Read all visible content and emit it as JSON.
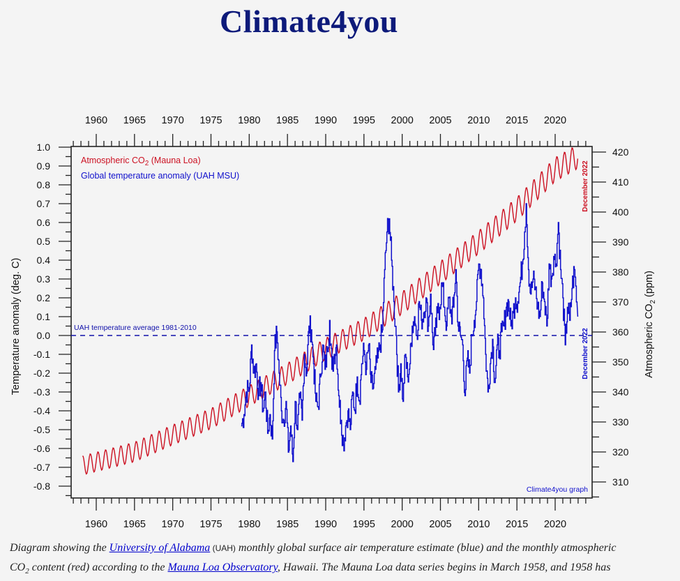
{
  "page": {
    "site_title": "Climate4you"
  },
  "caption": {
    "line1_part1": "Diagram showing the ",
    "link1": "University of Alabama",
    "line1_part2": " (UAH)",
    "line1_part3": " monthly global surface air temperature estimate (blue) and the monthly atmospheric",
    "line2_co2": "CO",
    "line2_sub": "2",
    "line2_part1": " content (red) according to the ",
    "link2": "Mauna Loa Observatory",
    "line2_part2": ", Hawaii. The Mauna Loa data series begins in March 1958, and 1958 has"
  },
  "chart_data": {
    "type": "line",
    "title": "",
    "xlabel": "",
    "xlim": [
      1956.8,
      2024.8
    ],
    "x_ticks": [
      1960,
      1965,
      1970,
      1975,
      1980,
      1985,
      1990,
      1995,
      2000,
      2005,
      2010,
      2015,
      2020
    ],
    "x_tick_labels": [
      "1960",
      "1965",
      "1970",
      "1975",
      "1980",
      "1985",
      "1990",
      "1995",
      "2000",
      "2005",
      "2010",
      "2015",
      "2020"
    ],
    "y_left": {
      "label": "Temperature anomaly (deg. C)",
      "ylim": [
        -0.9,
        1.0
      ],
      "ticks": [
        1.0,
        0.9,
        0.8,
        0.7,
        0.6,
        0.5,
        0.4,
        0.3,
        0.2,
        0.1,
        0.0,
        -0.1,
        -0.2,
        -0.3,
        -0.4,
        -0.5,
        -0.6,
        -0.7,
        -0.8
      ],
      "tick_labels": [
        "1.0",
        "0.9",
        "0.8",
        "0.7",
        "0.6",
        "0.5",
        "0.4",
        "0.3",
        "0.2",
        "0.1",
        "0.0",
        "-0.1",
        "-0.2",
        "-0.3",
        "-0.4",
        "-0.5",
        "-0.6",
        "-0.7",
        "-0.8"
      ]
    },
    "y_right": {
      "label_main": "Atmospheric CO",
      "label_sub": "2",
      "label_tail": " (ppm)",
      "ylim": [
        305,
        421.7
      ],
      "ticks": [
        420,
        410,
        400,
        390,
        380,
        370,
        360,
        350,
        340,
        330,
        320,
        310
      ],
      "tick_labels": [
        "420",
        "410",
        "400",
        "390",
        "380",
        "370",
        "360",
        "350",
        "340",
        "330",
        "320",
        "310"
      ]
    },
    "legend": {
      "placement": "top-left",
      "entries": [
        {
          "label_main": "Atmospheric CO",
          "label_sub": "2",
          "label_tail": " (Mauna Loa)",
          "color": "#cc1122"
        },
        {
          "label_main": "Global temperature anomaly (UAH MSU)",
          "label_sub": "",
          "label_tail": "",
          "color": "#1010cc"
        }
      ]
    },
    "annotations": {
      "baseline_label": "UAH temperature average 1981-2010",
      "baseline_value": 0.0,
      "co2_end_label": "December 2022",
      "temp_end_label": "December 2022",
      "credit": "Climate4you graph"
    },
    "series": [
      {
        "name": "Atmospheric CO2 (Mauna Loa)",
        "axis": "right",
        "color": "#cc1122",
        "start": 1958.2,
        "end": 2022.95,
        "seasonal_amplitude_ppm": 3.2,
        "trend_x": [
          1958.2,
          1965,
          1970,
          1975,
          1980,
          1985,
          1990,
          1995,
          2000,
          2005,
          2010,
          2015,
          2020,
          2022.95
        ],
        "trend_y": [
          315.5,
          320.0,
          325.7,
          331.1,
          338.7,
          346.1,
          354.4,
          360.9,
          369.7,
          379.8,
          389.9,
          401.0,
          414.2,
          418.5
        ]
      },
      {
        "name": "Global temperature anomaly (UAH MSU)",
        "axis": "left",
        "color": "#1010cc",
        "x": [
          1978.95,
          1979.3,
          1979.6,
          1980.0,
          1980.3,
          1980.6,
          1980.9,
          1981.2,
          1981.5,
          1981.8,
          1982.1,
          1982.4,
          1982.7,
          1983.0,
          1983.3,
          1983.6,
          1983.9,
          1984.2,
          1984.5,
          1984.8,
          1985.1,
          1985.4,
          1985.7,
          1986.0,
          1986.3,
          1986.6,
          1986.9,
          1987.2,
          1987.5,
          1987.8,
          1988.1,
          1988.4,
          1988.7,
          1989.0,
          1989.3,
          1989.6,
          1989.9,
          1990.2,
          1990.5,
          1990.8,
          1991.1,
          1991.4,
          1991.7,
          1992.0,
          1992.3,
          1992.6,
          1992.9,
          1993.2,
          1993.5,
          1993.8,
          1994.1,
          1994.4,
          1994.7,
          1995.0,
          1995.3,
          1995.6,
          1995.9,
          1996.2,
          1996.5,
          1996.8,
          1997.1,
          1997.4,
          1997.7,
          1998.0,
          1998.3,
          1998.6,
          1998.9,
          1999.2,
          1999.5,
          1999.8,
          2000.1,
          2000.4,
          2000.7,
          2001.0,
          2001.3,
          2001.6,
          2001.9,
          2002.2,
          2002.5,
          2002.8,
          2003.1,
          2003.4,
          2003.7,
          2004.0,
          2004.3,
          2004.6,
          2004.9,
          2005.2,
          2005.5,
          2005.8,
          2006.1,
          2006.4,
          2006.7,
          2007.0,
          2007.3,
          2007.6,
          2007.9,
          2008.2,
          2008.5,
          2008.8,
          2009.1,
          2009.4,
          2009.7,
          2010.0,
          2010.3,
          2010.6,
          2010.9,
          2011.2,
          2011.5,
          2011.8,
          2012.1,
          2012.4,
          2012.7,
          2013.0,
          2013.3,
          2013.6,
          2013.9,
          2014.2,
          2014.5,
          2014.8,
          2015.1,
          2015.4,
          2015.7,
          2016.0,
          2016.2,
          2016.5,
          2016.8,
          2017.1,
          2017.4,
          2017.7,
          2018.0,
          2018.3,
          2018.6,
          2018.9,
          2019.2,
          2019.5,
          2019.8,
          2020.1,
          2020.4,
          2020.7,
          2021.0,
          2021.3,
          2021.6,
          2021.9,
          2022.2,
          2022.5,
          2022.95
        ],
        "y": [
          -0.48,
          -0.42,
          -0.3,
          -0.28,
          -0.05,
          -0.2,
          -0.15,
          -0.32,
          -0.25,
          -0.4,
          -0.3,
          -0.52,
          -0.42,
          -0.55,
          -0.08,
          0.02,
          -0.2,
          -0.4,
          -0.45,
          -0.35,
          -0.62,
          -0.48,
          -0.67,
          -0.35,
          -0.5,
          -0.33,
          -0.45,
          -0.1,
          -0.2,
          0.05,
          0.03,
          -0.15,
          -0.35,
          -0.38,
          -0.22,
          -0.05,
          -0.18,
          -0.08,
          0.08,
          -0.18,
          -0.1,
          -0.05,
          -0.32,
          -0.45,
          -0.58,
          -0.48,
          -0.4,
          -0.5,
          -0.3,
          -0.4,
          -0.22,
          -0.35,
          -0.15,
          -0.08,
          -0.18,
          -0.05,
          -0.25,
          -0.28,
          -0.18,
          -0.12,
          -0.05,
          0.03,
          0.35,
          0.55,
          0.62,
          0.4,
          0.18,
          0.0,
          -0.3,
          -0.15,
          -0.35,
          -0.1,
          -0.22,
          -0.15,
          0.05,
          0.1,
          0.0,
          0.18,
          0.08,
          0.12,
          0.2,
          0.05,
          0.22,
          -0.05,
          0.0,
          0.12,
          0.15,
          0.28,
          0.15,
          0.05,
          0.2,
          0.1,
          0.15,
          0.35,
          0.05,
          0.0,
          -0.05,
          -0.32,
          -0.12,
          -0.2,
          0.0,
          0.08,
          0.18,
          0.38,
          0.35,
          0.2,
          -0.1,
          -0.3,
          -0.15,
          -0.02,
          -0.25,
          -0.05,
          -0.08,
          0.02,
          0.05,
          0.15,
          0.18,
          0.05,
          0.12,
          0.2,
          0.18,
          0.28,
          0.38,
          0.55,
          0.7,
          0.35,
          0.22,
          0.3,
          0.25,
          0.15,
          0.1,
          0.28,
          0.18,
          0.05,
          0.38,
          0.3,
          0.42,
          0.38,
          0.6,
          0.35,
          0.2,
          -0.05,
          0.15,
          0.08,
          0.25,
          0.35,
          0.1
        ]
      }
    ]
  }
}
